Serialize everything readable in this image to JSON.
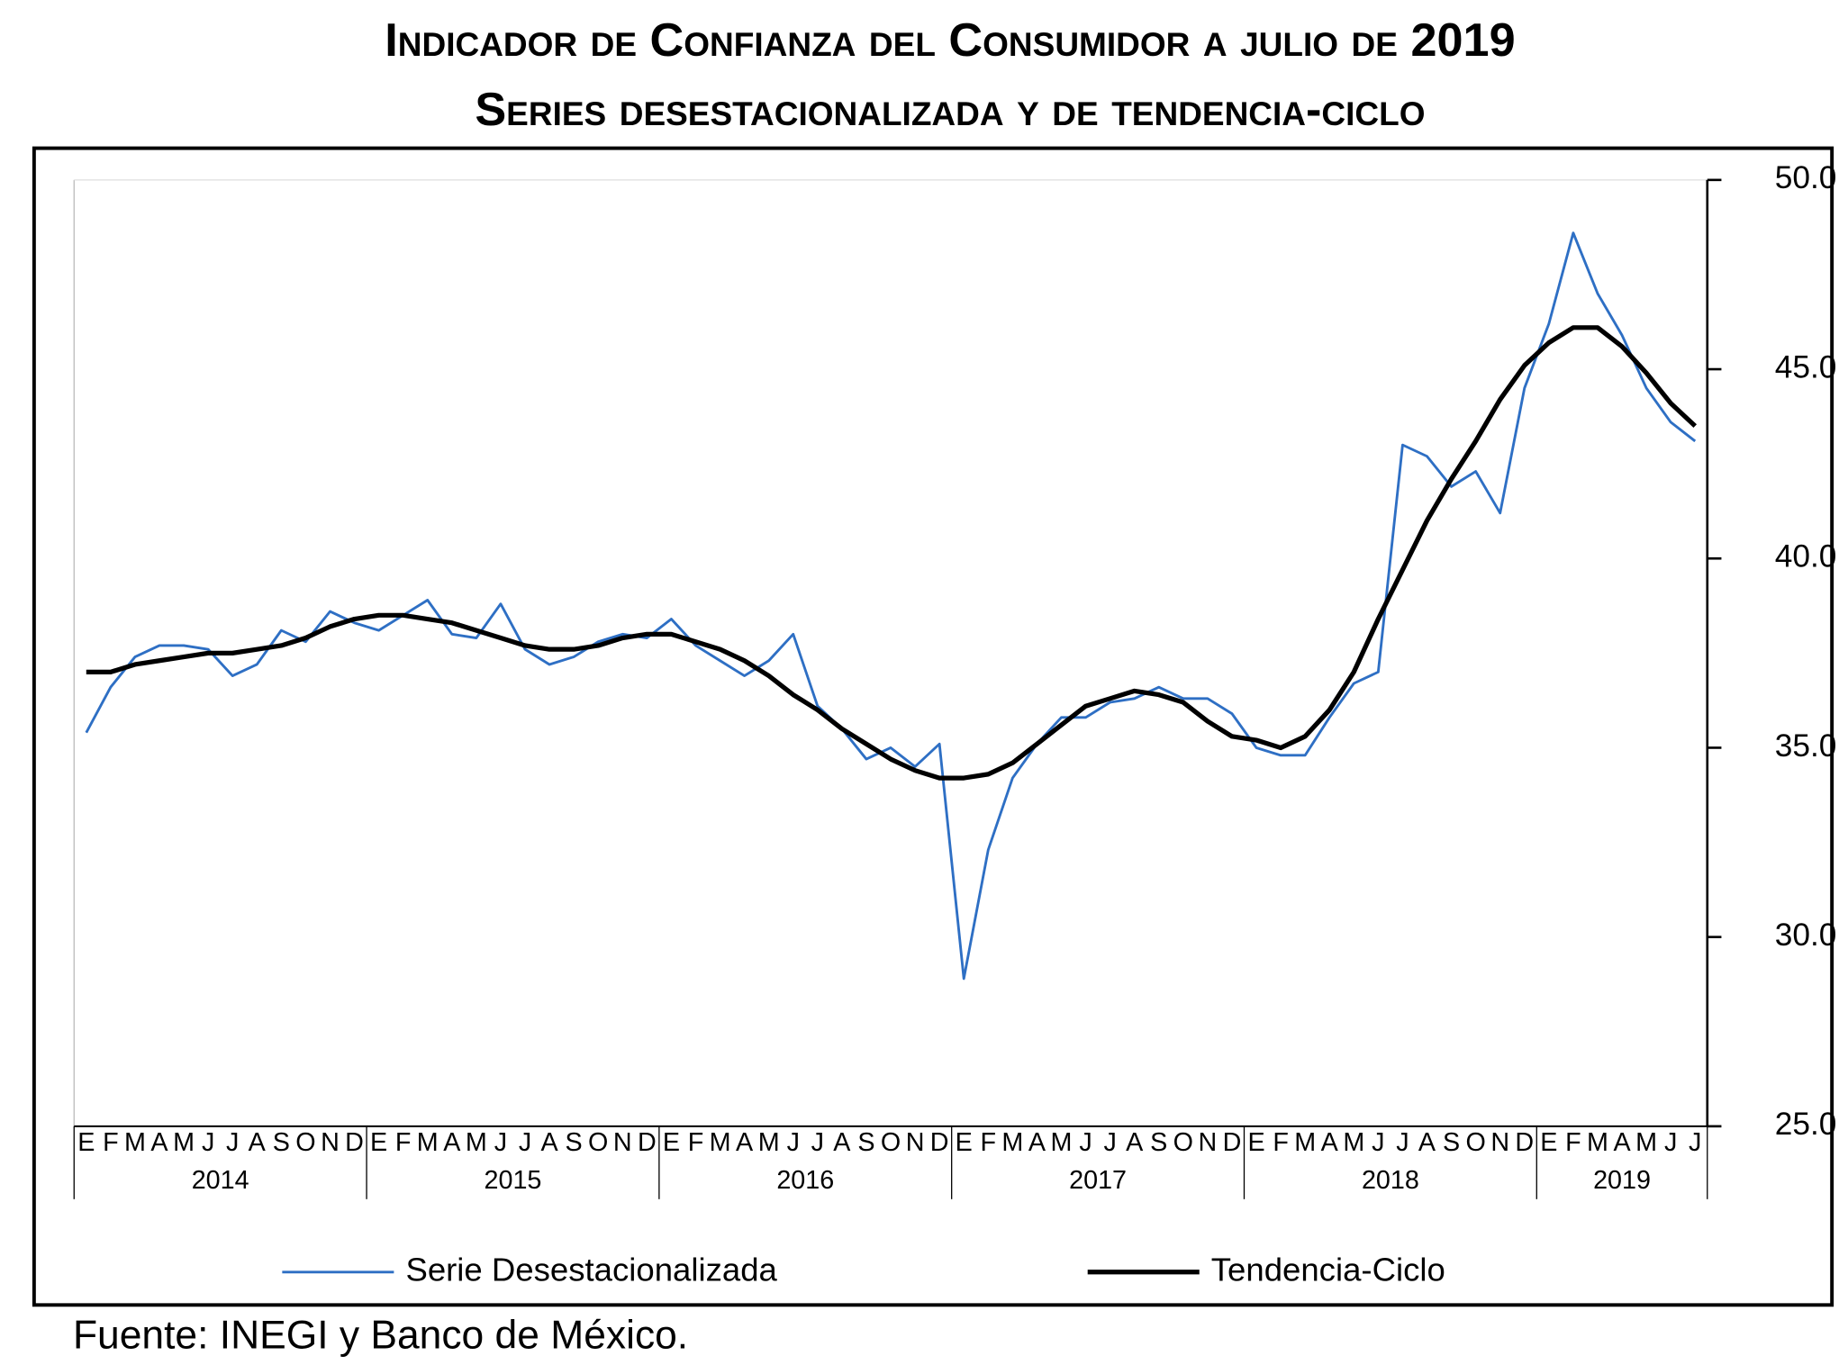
{
  "chart_data": {
    "type": "line",
    "title": "Indicador de Confianza del Consumidor a julio de 2019",
    "subtitle": "Series desestacionalizada y de tendencia-ciclo",
    "categories": [
      "E",
      "F",
      "M",
      "A",
      "M",
      "J",
      "J",
      "A",
      "S",
      "O",
      "N",
      "D",
      "E",
      "F",
      "M",
      "A",
      "M",
      "J",
      "J",
      "A",
      "S",
      "O",
      "N",
      "D",
      "E",
      "F",
      "M",
      "A",
      "M",
      "J",
      "J",
      "A",
      "S",
      "O",
      "N",
      "D",
      "E",
      "F",
      "M",
      "A",
      "M",
      "J",
      "J",
      "A",
      "S",
      "O",
      "N",
      "D",
      "E",
      "F",
      "M",
      "A",
      "M",
      "J",
      "J",
      "A",
      "S",
      "O",
      "N",
      "D",
      "E",
      "F",
      "M",
      "A",
      "M",
      "J",
      "J"
    ],
    "years": [
      "2014",
      "2015",
      "2016",
      "2017",
      "2018",
      "2019"
    ],
    "series": [
      {
        "name": "Serie Desestacionalizada",
        "color": "#2e6fc4",
        "values": [
          35.4,
          36.6,
          37.4,
          37.7,
          37.7,
          37.6,
          36.9,
          37.2,
          38.1,
          37.8,
          38.6,
          38.3,
          38.1,
          38.5,
          38.9,
          38.0,
          37.9,
          38.8,
          37.6,
          37.2,
          37.4,
          37.8,
          38.0,
          37.9,
          38.4,
          37.7,
          37.3,
          36.9,
          37.3,
          38.0,
          36.1,
          35.5,
          34.7,
          35.0,
          34.5,
          35.1,
          28.9,
          32.3,
          34.2,
          35.1,
          35.8,
          35.8,
          36.2,
          36.3,
          36.6,
          36.3,
          36.3,
          35.9,
          35.0,
          34.8,
          34.8,
          35.8,
          36.7,
          37.0,
          43.0,
          42.7,
          41.9,
          42.3,
          41.2,
          44.5,
          46.2,
          48.6,
          47.0,
          45.9,
          44.5,
          43.6,
          43.1
        ]
      },
      {
        "name": "Tendencia-Ciclo",
        "color": "#000000",
        "values": [
          37.0,
          37.0,
          37.2,
          37.3,
          37.4,
          37.5,
          37.5,
          37.6,
          37.7,
          37.9,
          38.2,
          38.4,
          38.5,
          38.5,
          38.4,
          38.3,
          38.1,
          37.9,
          37.7,
          37.6,
          37.6,
          37.7,
          37.9,
          38.0,
          38.0,
          37.8,
          37.6,
          37.3,
          36.9,
          36.4,
          36.0,
          35.5,
          35.1,
          34.7,
          34.4,
          34.2,
          34.2,
          34.3,
          34.6,
          35.1,
          35.6,
          36.1,
          36.3,
          36.5,
          36.4,
          36.2,
          35.7,
          35.3,
          35.2,
          35.0,
          35.3,
          36.0,
          37.0,
          38.4,
          39.7,
          41.0,
          42.1,
          43.1,
          44.2,
          45.1,
          45.7,
          46.1,
          46.1,
          45.6,
          44.9,
          44.1,
          43.5
        ]
      }
    ],
    "ylim": [
      25,
      50
    ],
    "yticks": [
      {
        "value": 25,
        "label": "25.0"
      },
      {
        "value": 30,
        "label": "30.0"
      },
      {
        "value": 35,
        "label": "35.0"
      },
      {
        "value": 40,
        "label": "40.0"
      },
      {
        "value": 45,
        "label": "45.0"
      },
      {
        "value": 50,
        "label": "50.0"
      }
    ],
    "legend": "bottom",
    "source": "Fuente: INEGI y Banco de México."
  }
}
